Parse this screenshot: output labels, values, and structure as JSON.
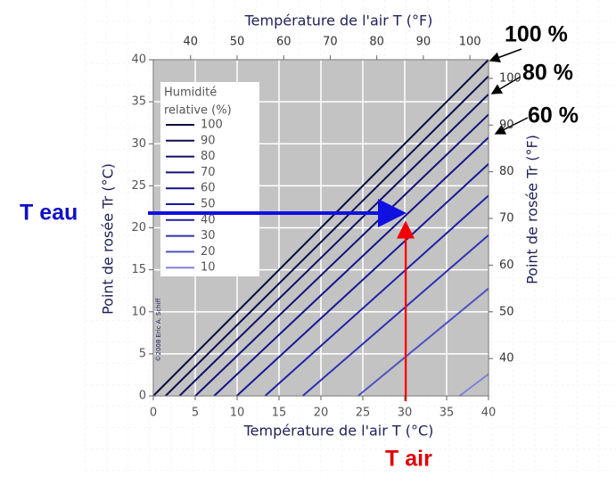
{
  "chart_data": {
    "type": "line",
    "x_label": "Température de l'air T (°C)",
    "y_label": "Point de rosée Tr (°C)",
    "x2_label": "Température de l'air T (°F)",
    "y2_label": "Point de rosée Tr (°F)",
    "xlim": [
      0,
      40
    ],
    "xticks": [
      0,
      5,
      10,
      15,
      20,
      25,
      30,
      35,
      40
    ],
    "ylim": [
      0,
      40
    ],
    "yticks": [
      0,
      5,
      10,
      15,
      20,
      25,
      30,
      35,
      40
    ],
    "x2lim": [
      32,
      104
    ],
    "x2ticks": [
      40,
      50,
      60,
      70,
      80,
      90,
      100
    ],
    "y2lim": [
      32,
      104
    ],
    "y2ticks": [
      40,
      50,
      60,
      70,
      80,
      90,
      100
    ],
    "grid": true,
    "legend_title": [
      "Humidité",
      "relative (%)"
    ],
    "series": [
      {
        "name": "100",
        "color": "#0b0b40",
        "x": [
          0,
          40
        ],
        "values": [
          0,
          40
        ]
      },
      {
        "name": "90",
        "color": "#0e0e52",
        "x": [
          1.46,
          40
        ],
        "values": [
          0,
          38.04
        ]
      },
      {
        "name": "80",
        "color": "#101064",
        "x": [
          3.12,
          40
        ],
        "values": [
          0,
          35.89
        ]
      },
      {
        "name": "70",
        "color": "#121278",
        "x": [
          5.02,
          40
        ],
        "values": [
          0,
          33.48
        ]
      },
      {
        "name": "60",
        "color": "#14148a",
        "x": [
          7.26,
          40
        ],
        "values": [
          0,
          30.75
        ]
      },
      {
        "name": "50",
        "color": "#181898",
        "x": [
          9.96,
          40
        ],
        "values": [
          0,
          27.6
        ]
      },
      {
        "name": "40",
        "color": "#2020a8",
        "x": [
          13.34,
          40
        ],
        "values": [
          0,
          23.83
        ]
      },
      {
        "name": "30",
        "color": "#3030b4",
        "x": [
          17.83,
          40
        ],
        "values": [
          0,
          19.13
        ]
      },
      {
        "name": "20",
        "color": "#5050c4",
        "x": [
          24.44,
          40
        ],
        "values": [
          0,
          12.78
        ]
      },
      {
        "name": "10",
        "color": "#8080dc",
        "x": [
          36.55,
          40
        ],
        "values": [
          0,
          2.6
        ]
      }
    ],
    "annotations": [
      "100 %",
      "80 %",
      "60 %",
      "T eau",
      "T air"
    ],
    "credit": "©2008 Eric A. Schiff"
  }
}
